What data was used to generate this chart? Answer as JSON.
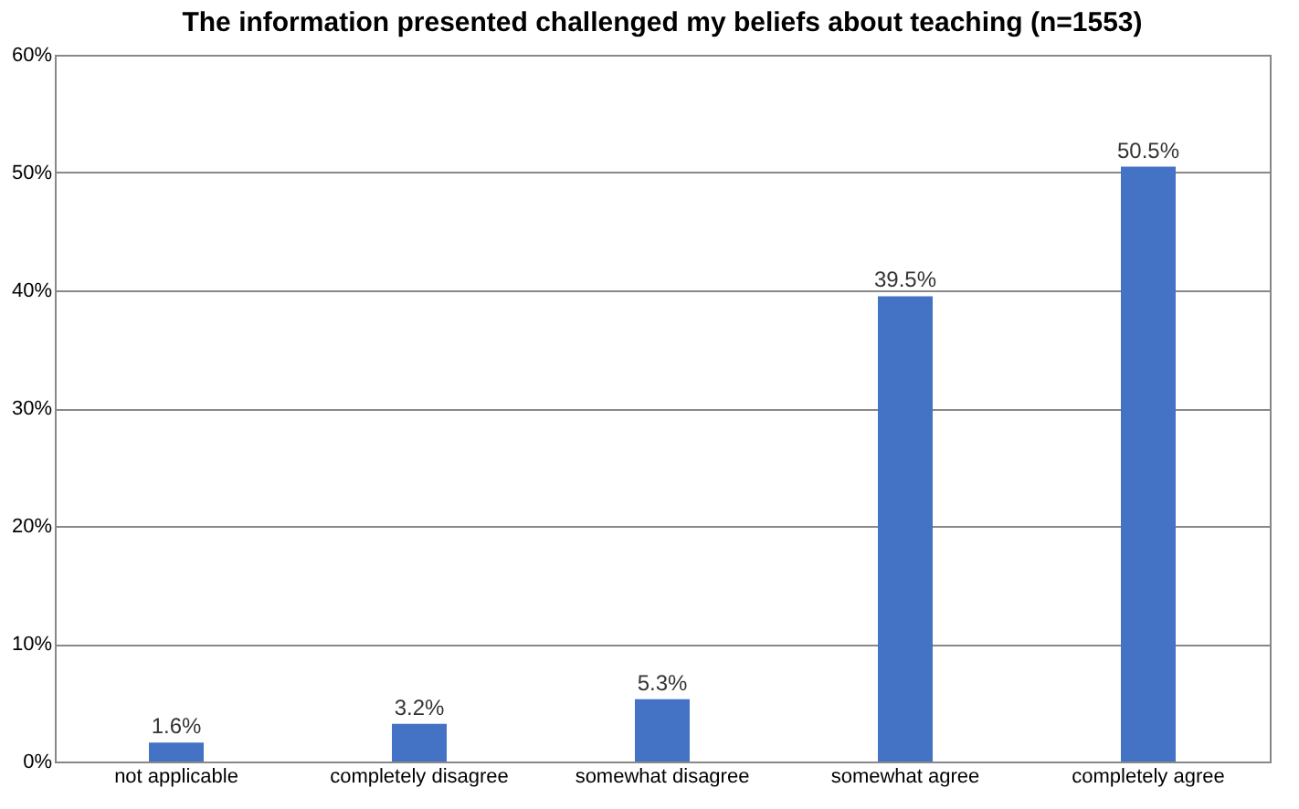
{
  "chart_data": {
    "type": "bar",
    "title": "The information presented challenged my beliefs about teaching (n=1553)",
    "categories": [
      "not applicable",
      "completely disagree",
      "somewhat disagree",
      "somewhat agree",
      "completely agree"
    ],
    "values": [
      1.6,
      3.2,
      5.3,
      39.5,
      50.5
    ],
    "value_labels": [
      "1.6%",
      "3.2%",
      "5.3%",
      "39.5%",
      "50.5%"
    ],
    "color": "#4472c4",
    "ylim": [
      0,
      60
    ],
    "yticks": [
      {
        "value": 0,
        "label": "0%"
      },
      {
        "value": 10,
        "label": "10%"
      },
      {
        "value": 20,
        "label": "20%"
      },
      {
        "value": 30,
        "label": "30%"
      },
      {
        "value": 40,
        "label": "40%"
      },
      {
        "value": 50,
        "label": "50%"
      },
      {
        "value": 60,
        "label": "60%"
      }
    ],
    "grid": "y"
  }
}
